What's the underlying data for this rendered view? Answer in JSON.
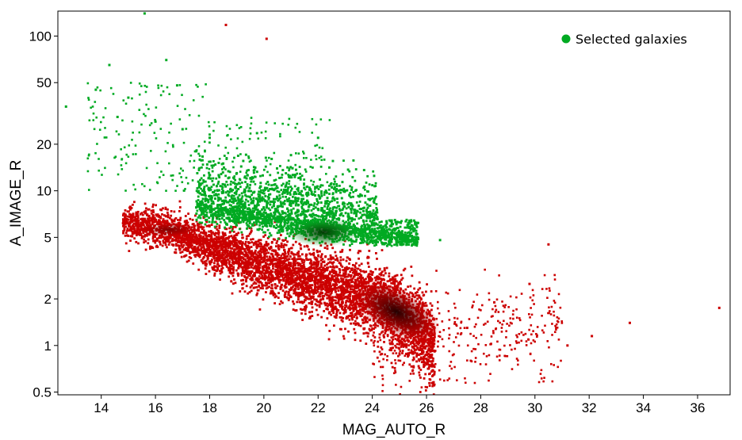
{
  "chart_data": {
    "type": "scatter",
    "title": "",
    "xlabel": "MAG_AUTO_R",
    "ylabel": "A_IMAGE_R",
    "xlim": [
      12.4,
      37.2
    ],
    "ylim": [
      0.48,
      145
    ],
    "yscale": "log",
    "grid": false,
    "legend_position": "top-right",
    "x_ticks": [
      14,
      16,
      18,
      20,
      22,
      24,
      26,
      28,
      30,
      32,
      34,
      36
    ],
    "x_tick_labels": [
      "14",
      "16",
      "18",
      "20",
      "22",
      "24",
      "26",
      "28",
      "30",
      "32",
      "34",
      "36"
    ],
    "y_ticks": [
      0.5,
      1,
      2,
      5,
      10,
      20,
      50,
      100
    ],
    "y_tick_labels": [
      "0.5",
      "1",
      "2",
      "5",
      "10",
      "20",
      "50",
      "100"
    ],
    "series": [
      {
        "name": "",
        "color": "#cc0000",
        "density_peak_color": "#1a0000",
        "description_points": "sequence",
        "points": [
          [
            14.8,
            6.2
          ],
          [
            15.2,
            6.1
          ],
          [
            15.6,
            6.0
          ],
          [
            16.0,
            5.8
          ],
          [
            16.4,
            5.6
          ],
          [
            16.8,
            5.3
          ],
          [
            17.2,
            5.0
          ],
          [
            17.6,
            4.7
          ],
          [
            18.0,
            4.4
          ],
          [
            18.5,
            4.1
          ],
          [
            19.0,
            3.8
          ],
          [
            19.5,
            3.5
          ],
          [
            20.0,
            3.3
          ],
          [
            20.5,
            3.1
          ],
          [
            21.0,
            2.9
          ],
          [
            21.5,
            2.75
          ],
          [
            22.0,
            2.6
          ],
          [
            22.5,
            2.45
          ],
          [
            23.0,
            2.3
          ],
          [
            23.5,
            2.15
          ],
          [
            24.0,
            2.0
          ],
          [
            24.5,
            1.8
          ],
          [
            25.0,
            1.6
          ],
          [
            25.5,
            1.35
          ],
          [
            26.0,
            1.1
          ],
          [
            26.3,
            0.95
          ],
          [
            18.6,
            118
          ],
          [
            20.1,
            96
          ],
          [
            36.8,
            1.75
          ],
          [
            33.5,
            1.4
          ],
          [
            32.1,
            1.15
          ],
          [
            31.2,
            1.0
          ],
          [
            30.5,
            4.5
          ],
          [
            29.8,
            2.5
          ],
          [
            28.5,
            1.9
          ],
          [
            27.5,
            1.3
          ]
        ]
      },
      {
        "name": "Selected galaxies",
        "color": "#00aa22",
        "density_peak_color": "#003300",
        "points": [
          [
            12.7,
            35
          ],
          [
            13.8,
            45
          ],
          [
            14.3,
            65
          ],
          [
            15.6,
            140
          ],
          [
            16.4,
            70
          ],
          [
            16.8,
            48
          ],
          [
            15.0,
            40
          ],
          [
            14.6,
            30
          ],
          [
            16.0,
            28
          ],
          [
            17.0,
            25
          ],
          [
            17.5,
            18
          ],
          [
            18.0,
            22
          ],
          [
            18.5,
            15
          ],
          [
            19.0,
            13
          ],
          [
            19.5,
            12
          ],
          [
            20.0,
            10
          ],
          [
            20.5,
            9
          ],
          [
            21.0,
            8
          ],
          [
            21.5,
            7
          ],
          [
            22.0,
            6.5
          ],
          [
            22.5,
            6
          ],
          [
            23.0,
            5.5
          ],
          [
            23.5,
            5.2
          ],
          [
            24.0,
            5.0
          ],
          [
            21.0,
            6.0
          ],
          [
            21.8,
            5.5
          ],
          [
            22.4,
            5.0
          ],
          [
            19.5,
            7.5
          ],
          [
            20.3,
            8.5
          ],
          [
            18.8,
            10
          ],
          [
            22.0,
            22
          ],
          [
            21.0,
            17
          ],
          [
            23.0,
            10
          ],
          [
            23.5,
            8
          ],
          [
            24.5,
            5.5
          ],
          [
            25.4,
            4.8
          ],
          [
            26.5,
            4.8
          ]
        ]
      }
    ]
  }
}
